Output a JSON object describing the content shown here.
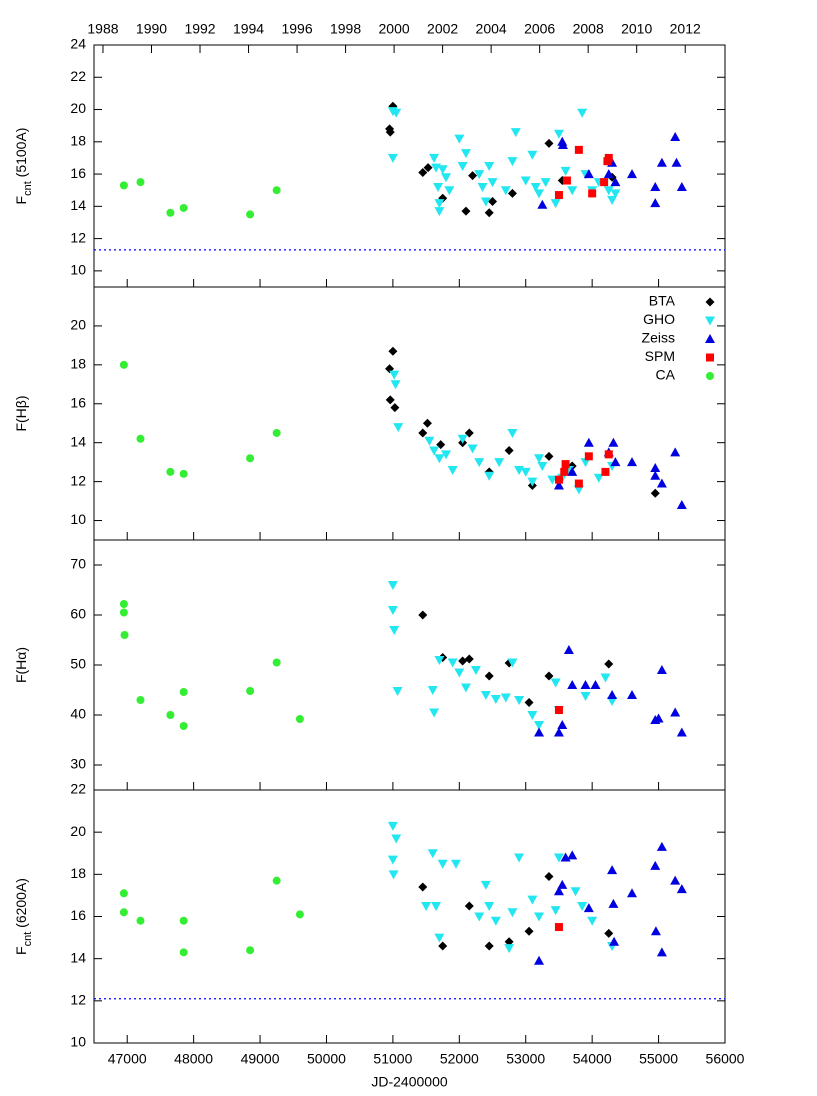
{
  "chart_data": [
    {
      "type": "scatter",
      "ylabel": [
        "F",
        "cnt",
        " (5100A)"
      ],
      "xlim": [
        46500,
        56000
      ],
      "x2lim": [
        1987.63,
        2013.64
      ],
      "x2ticks": [
        1988,
        1990,
        1992,
        1994,
        1996,
        1998,
        2000,
        2002,
        2004,
        2006,
        2008,
        2010,
        2012
      ],
      "ylim": [
        9,
        24
      ],
      "yticks": [
        10,
        12,
        14,
        16,
        18,
        20,
        22,
        24
      ],
      "hline": 11.3,
      "hline_color": "#0000ff",
      "series": [
        {
          "color": "#000000",
          "marker": "diamond",
          "x": [
            50950,
            50960,
            51000,
            51450,
            51530,
            51750,
            52100,
            52200,
            52450,
            52500,
            52800,
            53350,
            53550,
            54300
          ],
          "values": [
            18.8,
            18.6,
            20.2,
            16.1,
            16.4,
            14.5,
            13.7,
            15.9,
            13.6,
            14.3,
            14.8,
            17.9,
            15.6,
            15.8
          ]
        },
        {
          "color": "#22e6f0",
          "marker": "triangle-down",
          "x": [
            51000,
            51000,
            51050,
            51620,
            51650,
            51680,
            51700,
            51700,
            51750,
            51800,
            51850,
            52000,
            52050,
            52100,
            52300,
            52350,
            52400,
            52450,
            52500,
            52700,
            52800,
            52850,
            53000,
            53100,
            53150,
            53200,
            53300,
            53450,
            53500,
            53600,
            53700,
            53850,
            53900,
            54000,
            54100,
            54250,
            54300,
            54350
          ],
          "values": [
            19.9,
            17.0,
            19.8,
            17.0,
            16.4,
            15.2,
            14.2,
            13.7,
            16.3,
            15.8,
            15.0,
            18.2,
            16.5,
            17.3,
            16.0,
            15.2,
            14.3,
            16.5,
            15.5,
            15.0,
            16.8,
            18.6,
            15.6,
            17.2,
            15.2,
            14.8,
            15.5,
            14.2,
            18.5,
            16.2,
            15.0,
            19.8,
            16.0,
            15.0,
            15.5,
            15.0,
            14.4,
            14.8
          ]
        },
        {
          "color": "#0000e0",
          "marker": "triangle-up",
          "x": [
            53250,
            53550,
            53560,
            53950,
            54250,
            54300,
            54350,
            54600,
            54950,
            54950,
            55050,
            55250,
            55270,
            55350
          ],
          "values": [
            14.1,
            18.0,
            17.8,
            16.0,
            16.0,
            16.7,
            15.5,
            16.0,
            15.2,
            14.2,
            16.7,
            18.3,
            16.7,
            15.2
          ]
        },
        {
          "color": "#ff0000",
          "marker": "square",
          "x": [
            53500,
            53620,
            53800,
            54000,
            54180,
            54230,
            54250
          ],
          "values": [
            14.7,
            15.6,
            17.5,
            14.8,
            15.5,
            16.8,
            17.0
          ]
        },
        {
          "color": "#33ee33",
          "marker": "circle",
          "x": [
            46950,
            47200,
            47650,
            47850,
            48850,
            49250
          ],
          "values": [
            15.3,
            15.5,
            13.6,
            13.9,
            13.5,
            15.0
          ]
        }
      ]
    },
    {
      "type": "scatter",
      "ylabel": [
        "F(Hβ)"
      ],
      "xlim": [
        46500,
        56000
      ],
      "ylim": [
        9,
        22
      ],
      "yticks": [
        10,
        12,
        14,
        16,
        18,
        20
      ],
      "legend": "top-right",
      "series": [
        {
          "name": "BTA",
          "color": "#000000",
          "marker": "diamond",
          "x": [
            50950,
            50960,
            51000,
            51030,
            51450,
            51520,
            51720,
            52050,
            52150,
            52450,
            52750,
            53100,
            53350,
            53700,
            54950
          ],
          "values": [
            17.8,
            16.2,
            18.7,
            15.8,
            14.5,
            15.0,
            13.9,
            14.0,
            14.5,
            12.5,
            13.6,
            11.8,
            13.3,
            12.8,
            11.4
          ]
        },
        {
          "name": "GHO",
          "color": "#22e6f0",
          "marker": "triangle-down",
          "x": [
            51020,
            51040,
            51080,
            51550,
            51620,
            51700,
            51800,
            51900,
            52050,
            52200,
            52300,
            52450,
            52600,
            52800,
            52900,
            53000,
            53100,
            53200,
            53250,
            53400,
            53550,
            53650,
            53800,
            53900,
            54100,
            54300
          ],
          "values": [
            17.5,
            17.0,
            14.8,
            14.1,
            13.6,
            13.2,
            13.4,
            12.6,
            14.2,
            13.7,
            13.0,
            12.3,
            13.0,
            14.5,
            12.6,
            12.5,
            12.0,
            13.2,
            12.8,
            12.1,
            12.2,
            12.6,
            11.6,
            13.0,
            12.2,
            12.8
          ]
        },
        {
          "name": "Zeiss",
          "color": "#0000e0",
          "marker": "triangle-up",
          "x": [
            53500,
            53700,
            53950,
            54250,
            54320,
            54350,
            54600,
            54950,
            54950,
            55050,
            55250,
            55350
          ],
          "values": [
            11.8,
            12.5,
            14.0,
            13.5,
            14.0,
            13.0,
            13.0,
            12.7,
            12.3,
            11.9,
            13.5,
            10.8
          ]
        },
        {
          "name": "SPM",
          "color": "#ff0000",
          "marker": "square",
          "x": [
            53500,
            53580,
            53600,
            53800,
            53950,
            54200,
            54250
          ],
          "values": [
            12.1,
            12.5,
            12.9,
            11.9,
            13.3,
            12.5,
            13.4
          ]
        },
        {
          "name": "CA",
          "color": "#33ee33",
          "marker": "circle",
          "x": [
            46950,
            47200,
            47650,
            47850,
            48850,
            49250
          ],
          "values": [
            18.0,
            14.2,
            12.5,
            12.4,
            13.2,
            14.5
          ]
        }
      ]
    },
    {
      "type": "scatter",
      "ylabel": [
        "F(Hα)"
      ],
      "xlim": [
        46500,
        56000
      ],
      "ylim": [
        25,
        75
      ],
      "yticks": [
        30,
        40,
        50,
        60,
        70
      ],
      "series": [
        {
          "color": "#000000",
          "marker": "diamond",
          "x": [
            51450,
            51750,
            52050,
            52150,
            52450,
            52750,
            53050,
            53350,
            54250
          ],
          "values": [
            60.0,
            51.5,
            50.8,
            51.2,
            47.8,
            50.4,
            42.5,
            47.8,
            50.2
          ]
        },
        {
          "color": "#22e6f0",
          "marker": "triangle-down",
          "x": [
            51000,
            51000,
            51020,
            51070,
            51600,
            51620,
            51700,
            51900,
            52000,
            52100,
            52250,
            52400,
            52550,
            52700,
            52800,
            52900,
            53100,
            53200,
            53450,
            53500,
            53900,
            54200,
            54300
          ],
          "values": [
            66.0,
            61.0,
            57.0,
            44.8,
            45.0,
            40.5,
            51.0,
            50.5,
            48.5,
            45.5,
            49.0,
            44.0,
            43.2,
            43.5,
            50.5,
            43.0,
            40.0,
            38.0,
            46.5,
            41.0,
            43.8,
            47.5,
            42.8
          ]
        },
        {
          "color": "#0000e0",
          "marker": "triangle-up",
          "x": [
            53200,
            53500,
            53550,
            53650,
            53700,
            53900,
            54050,
            54300,
            54600,
            54950,
            55000,
            55050,
            55250,
            55350
          ],
          "values": [
            36.5,
            36.5,
            38.0,
            53.0,
            46.0,
            46.0,
            46.0,
            44.0,
            44.0,
            39.0,
            39.3,
            49.0,
            40.5,
            36.5
          ]
        },
        {
          "color": "#ff0000",
          "marker": "square",
          "x": [
            53500
          ],
          "values": [
            41.0
          ]
        },
        {
          "color": "#33ee33",
          "marker": "circle",
          "x": [
            46950,
            46950,
            46960,
            47200,
            47650,
            47850,
            47850,
            48850,
            49250,
            49600
          ],
          "values": [
            62.2,
            60.5,
            56.0,
            43.0,
            40.0,
            37.8,
            44.6,
            44.8,
            50.5,
            39.2
          ]
        }
      ]
    },
    {
      "type": "scatter",
      "ylabel": [
        "F",
        "cnt",
        " (6200A)"
      ],
      "xlabel": "JD-2400000",
      "xlim": [
        46500,
        56000
      ],
      "xticks": [
        47000,
        48000,
        49000,
        50000,
        51000,
        52000,
        53000,
        54000,
        55000,
        56000
      ],
      "ylim": [
        10,
        22
      ],
      "yticks": [
        10,
        12,
        14,
        16,
        18,
        20,
        22
      ],
      "hline": 12.1,
      "hline_color": "#0000ff",
      "series": [
        {
          "color": "#000000",
          "marker": "diamond",
          "x": [
            51450,
            51750,
            52150,
            52450,
            52750,
            53050,
            53350,
            54250
          ],
          "values": [
            17.4,
            14.6,
            16.5,
            14.6,
            14.8,
            15.3,
            17.9,
            15.2
          ]
        },
        {
          "color": "#22e6f0",
          "marker": "triangle-down",
          "x": [
            51000,
            51000,
            51010,
            51050,
            51500,
            51600,
            51650,
            51700,
            51750,
            51950,
            52300,
            52400,
            52450,
            52550,
            52750,
            52800,
            52900,
            53100,
            53200,
            53450,
            53500,
            53750,
            53850,
            54000,
            54300
          ],
          "values": [
            20.3,
            18.7,
            18.0,
            19.7,
            16.5,
            19.0,
            16.5,
            15.0,
            18.5,
            18.5,
            16.0,
            17.5,
            16.5,
            15.8,
            14.5,
            16.2,
            18.8,
            16.8,
            16.0,
            16.3,
            18.8,
            17.2,
            16.5,
            15.8,
            14.6
          ]
        },
        {
          "color": "#0000e0",
          "marker": "triangle-up",
          "x": [
            53200,
            53500,
            53550,
            53600,
            53700,
            53950,
            54300,
            54320,
            54330,
            54600,
            54950,
            54960,
            55050,
            55050,
            55250,
            55350
          ],
          "values": [
            13.9,
            17.2,
            17.5,
            18.8,
            18.9,
            16.4,
            18.2,
            16.6,
            14.8,
            17.1,
            18.4,
            15.3,
            19.3,
            14.3,
            17.7,
            17.3
          ]
        },
        {
          "color": "#ff0000",
          "marker": "square",
          "x": [
            53500
          ],
          "values": [
            15.5
          ]
        },
        {
          "color": "#33ee33",
          "marker": "circle",
          "x": [
            46950,
            46950,
            47200,
            47850,
            47850,
            48850,
            49250,
            49600
          ],
          "values": [
            17.1,
            16.2,
            15.8,
            15.8,
            14.3,
            14.4,
            17.7,
            16.1
          ]
        }
      ]
    }
  ]
}
